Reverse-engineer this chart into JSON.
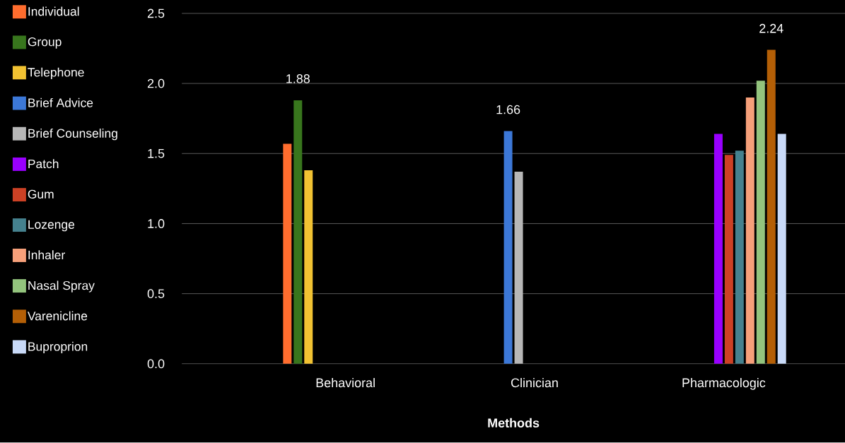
{
  "chart_data": {
    "type": "bar",
    "xlabel": "Methods",
    "categories": [
      "Behavioral",
      "Clinician",
      "Pharmacologic"
    ],
    "series": [
      {
        "name": "Individual",
        "color": "#ff6d2e",
        "values": [
          1.57,
          null,
          null
        ]
      },
      {
        "name": "Group",
        "color": "#38761d",
        "values": [
          1.88,
          null,
          null
        ],
        "value_labels": [
          "1.88",
          null,
          null
        ]
      },
      {
        "name": "Telephone",
        "color": "#f1c232",
        "values": [
          1.38,
          null,
          null
        ]
      },
      {
        "name": "Brief Advice",
        "color": "#3c78d8",
        "values": [
          null,
          1.66,
          null
        ],
        "value_labels": [
          null,
          "1.66",
          null
        ]
      },
      {
        "name": "Brief Counseling",
        "color": "#b7b7b7",
        "values": [
          null,
          1.37,
          null
        ]
      },
      {
        "name": "Patch",
        "color": "#9900ff",
        "values": [
          null,
          null,
          1.64
        ]
      },
      {
        "name": "Gum",
        "color": "#cc4125",
        "values": [
          null,
          null,
          1.49
        ]
      },
      {
        "name": "Lozenge",
        "color": "#45818e",
        "values": [
          null,
          null,
          1.52
        ]
      },
      {
        "name": "Inhaler",
        "color": "#f6a07a",
        "values": [
          null,
          null,
          1.9
        ]
      },
      {
        "name": "Nasal Spray",
        "color": "#93c47d",
        "values": [
          null,
          null,
          2.02
        ]
      },
      {
        "name": "Varenicline",
        "color": "#b45f06",
        "values": [
          null,
          null,
          2.24
        ],
        "value_labels": [
          null,
          null,
          "2.24"
        ]
      },
      {
        "name": "Buproprion",
        "color": "#c9daf8",
        "values": [
          null,
          null,
          1.64
        ]
      }
    ],
    "ylim": [
      0,
      2.5
    ],
    "yticks": [
      {
        "value": 0,
        "label": "0.0"
      },
      0.5,
      {
        "value": 1,
        "label": "1.0"
      },
      1.5,
      {
        "value": 2,
        "label": "2.0"
      },
      2.5
    ],
    "grid": "y",
    "legend": "left"
  }
}
